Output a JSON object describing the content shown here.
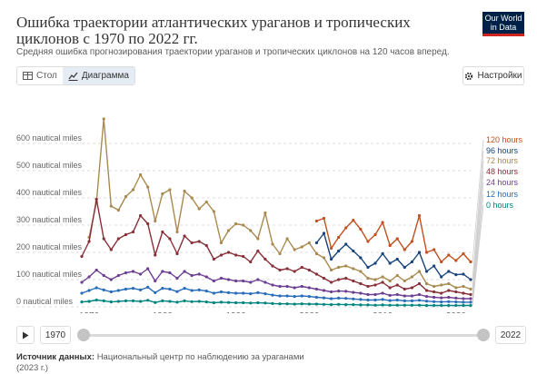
{
  "title": "Ошибка траектории атлантических ураганов и тропических циклонов с 1970 по 2022 гг.",
  "subtitle": "Средняя ошибка прогнозирования траектории ураганов и тропических циклонов на 120 часов вперед.",
  "logo": {
    "line1": "Our World",
    "line2": "in Data"
  },
  "tabs": {
    "table": "Стол",
    "chart": "Диаграмма"
  },
  "settings": "Настройки",
  "timeline": {
    "start": "1970",
    "end": "2022"
  },
  "source": {
    "label": "Источник данных:",
    "text": "Национальный центр по наблюдению за ураганами",
    "line2": "(2023 г.)"
  },
  "chart_data": {
    "type": "line",
    "y_axis": {
      "unit": "nautical miles",
      "ylim": [
        0,
        700
      ],
      "ticks": [
        0,
        100,
        200,
        300,
        400,
        500,
        600
      ]
    },
    "x_axis": {
      "xlim": [
        1969,
        2022
      ],
      "ticks": [
        1970,
        1980,
        1990,
        2000,
        2010,
        2020
      ]
    },
    "grid": "horizontal dashed",
    "legend_position": "right",
    "series": [
      {
        "name": "120 hours",
        "color": "#c15020",
        "x": [
          2001,
          2002,
          2003,
          2004,
          2005,
          2006,
          2007,
          2008,
          2009,
          2010,
          2011,
          2012,
          2013,
          2014,
          2015,
          2016,
          2017,
          2018,
          2019,
          2020,
          2021,
          2022
        ],
        "values": [
          315,
          325,
          215,
          255,
          290,
          318,
          285,
          240,
          265,
          310,
          225,
          250,
          210,
          240,
          335,
          200,
          210,
          165,
          190,
          170,
          195,
          165
        ]
      },
      {
        "name": "96 hours",
        "color": "#18447b",
        "x": [
          2001,
          2002,
          2003,
          2004,
          2005,
          2006,
          2007,
          2008,
          2009,
          2010,
          2011,
          2012,
          2013,
          2014,
          2015,
          2016,
          2017,
          2018,
          2019,
          2020,
          2021,
          2022
        ],
        "values": [
          235,
          270,
          175,
          205,
          230,
          205,
          180,
          145,
          160,
          195,
          160,
          175,
          145,
          165,
          200,
          130,
          150,
          110,
          130,
          118,
          120,
          100
        ]
      },
      {
        "name": "72 hours",
        "color": "#a88a50",
        "x": [
          1970,
          1971,
          1972,
          1973,
          1974,
          1975,
          1976,
          1977,
          1978,
          1979,
          1980,
          1981,
          1982,
          1983,
          1984,
          1985,
          1986,
          1987,
          1988,
          1989,
          1990,
          1991,
          1992,
          1993,
          1994,
          1995,
          1996,
          1997,
          1998,
          1999,
          2000,
          2001,
          2002,
          2003,
          2004,
          2005,
          2006,
          2007,
          2008,
          2009,
          2010,
          2011,
          2012,
          2013,
          2014,
          2015,
          2016,
          2017,
          2018,
          2019,
          2020,
          2021,
          2022
        ],
        "values": [
          255,
          385,
          690,
          370,
          355,
          405,
          430,
          485,
          440,
          315,
          415,
          430,
          275,
          425,
          400,
          360,
          385,
          350,
          235,
          280,
          305,
          300,
          280,
          250,
          345,
          230,
          195,
          250,
          210,
          220,
          235,
          195,
          180,
          135,
          145,
          150,
          140,
          130,
          105,
          100,
          110,
          95,
          115,
          95,
          110,
          130,
          85,
          75,
          80,
          85,
          70,
          75,
          65
        ]
      },
      {
        "name": "48 hours",
        "color": "#883039",
        "x": [
          1969,
          1970,
          1971,
          1972,
          1973,
          1974,
          1975,
          1976,
          1977,
          1978,
          1979,
          1980,
          1981,
          1982,
          1983,
          1984,
          1985,
          1986,
          1987,
          1988,
          1989,
          1990,
          1991,
          1992,
          1993,
          1994,
          1995,
          1996,
          1997,
          1998,
          1999,
          2000,
          2001,
          2002,
          2003,
          2004,
          2005,
          2006,
          2007,
          2008,
          2009,
          2010,
          2011,
          2012,
          2013,
          2014,
          2015,
          2016,
          2017,
          2018,
          2019,
          2020,
          2021,
          2022
        ],
        "values": [
          185,
          240,
          395,
          250,
          210,
          250,
          265,
          275,
          335,
          305,
          190,
          275,
          250,
          195,
          260,
          235,
          240,
          225,
          175,
          190,
          200,
          190,
          185,
          165,
          205,
          175,
          150,
          135,
          140,
          130,
          145,
          135,
          120,
          105,
          90,
          100,
          105,
          95,
          85,
          75,
          80,
          90,
          70,
          80,
          65,
          70,
          85,
          60,
          55,
          50,
          60,
          55,
          50,
          45
        ]
      },
      {
        "name": "24 hours",
        "color": "#6d3e91",
        "x": [
          1969,
          1970,
          1971,
          1972,
          1973,
          1974,
          1975,
          1976,
          1977,
          1978,
          1979,
          1980,
          1981,
          1982,
          1983,
          1984,
          1985,
          1986,
          1987,
          1988,
          1989,
          1990,
          1991,
          1992,
          1993,
          1994,
          1995,
          1996,
          1997,
          1998,
          1999,
          2000,
          2001,
          2002,
          2003,
          2004,
          2005,
          2006,
          2007,
          2008,
          2009,
          2010,
          2011,
          2012,
          2013,
          2014,
          2015,
          2016,
          2017,
          2018,
          2019,
          2020,
          2021,
          2022
        ],
        "values": [
          90,
          110,
          135,
          115,
          100,
          115,
          125,
          130,
          120,
          140,
          95,
          130,
          125,
          105,
          130,
          115,
          120,
          110,
          95,
          105,
          100,
          95,
          95,
          90,
          100,
          90,
          80,
          75,
          75,
          70,
          75,
          70,
          65,
          60,
          55,
          58,
          57,
          53,
          50,
          45,
          45,
          50,
          42,
          45,
          40,
          40,
          45,
          38,
          35,
          33,
          35,
          32,
          30,
          30
        ]
      },
      {
        "name": "12 hours",
        "color": "#286bbb",
        "x": [
          1969,
          1970,
          1971,
          1972,
          1973,
          1974,
          1975,
          1976,
          1977,
          1978,
          1979,
          1980,
          1981,
          1982,
          1983,
          1984,
          1985,
          1986,
          1987,
          1988,
          1989,
          1990,
          1991,
          1992,
          1993,
          1994,
          1995,
          1996,
          1997,
          1998,
          1999,
          2000,
          2001,
          2002,
          2003,
          2004,
          2005,
          2006,
          2007,
          2008,
          2009,
          2010,
          2011,
          2012,
          2013,
          2014,
          2015,
          2016,
          2017,
          2018,
          2019,
          2020,
          2021,
          2022
        ],
        "values": [
          50,
          60,
          70,
          62,
          55,
          60,
          65,
          68,
          62,
          72,
          52,
          68,
          65,
          56,
          68,
          60,
          62,
          58,
          50,
          55,
          52,
          50,
          50,
          48,
          52,
          48,
          43,
          40,
          40,
          38,
          40,
          38,
          35,
          33,
          30,
          32,
          31,
          29,
          27,
          25,
          25,
          27,
          23,
          25,
          22,
          22,
          24,
          21,
          19,
          18,
          19,
          18,
          17,
          17
        ]
      },
      {
        "name": "0 hours",
        "color": "#00847e",
        "x": [
          1969,
          1970,
          1971,
          1972,
          1973,
          1974,
          1975,
          1976,
          1977,
          1978,
          1979,
          1980,
          1981,
          1982,
          1983,
          1984,
          1985,
          1986,
          1987,
          1988,
          1989,
          1990,
          1991,
          1992,
          1993,
          1994,
          1995,
          1996,
          1997,
          1998,
          1999,
          2000,
          2001,
          2002,
          2003,
          2004,
          2005,
          2006,
          2007,
          2008,
          2009,
          2010,
          2011,
          2012,
          2013,
          2014,
          2015,
          2016,
          2017,
          2018,
          2019,
          2020,
          2021,
          2022
        ],
        "values": [
          18,
          20,
          25,
          22,
          18,
          20,
          22,
          22,
          20,
          24,
          16,
          22,
          20,
          17,
          22,
          19,
          20,
          18,
          15,
          17,
          16,
          15,
          15,
          14,
          15,
          14,
          12,
          11,
          11,
          10,
          11,
          10,
          10,
          9,
          8,
          9,
          8,
          8,
          7,
          7,
          6,
          7,
          6,
          6,
          6,
          6,
          6,
          5,
          5,
          5,
          5,
          5,
          5,
          5
        ]
      }
    ]
  }
}
